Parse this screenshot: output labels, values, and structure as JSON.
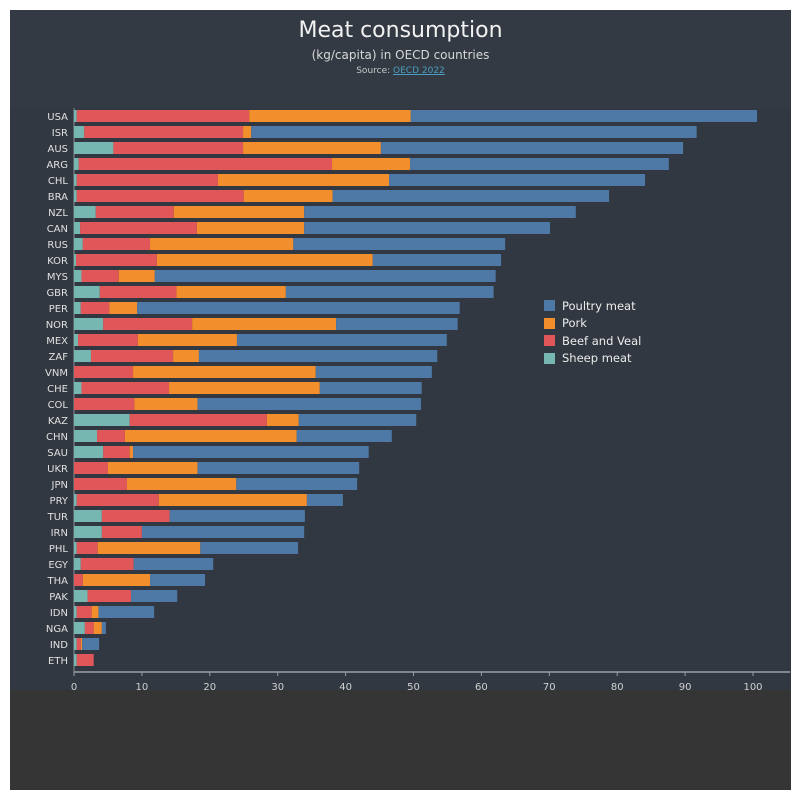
{
  "header": {
    "title": "Meat consumption",
    "subtitle": "(kg/capita) in OECD countries",
    "source_prefix": "Source: ",
    "source_link": "OECD 2022"
  },
  "legend": [
    {
      "name": "Poultry meat",
      "color": "#4e79a7"
    },
    {
      "name": "Pork",
      "color": "#f28e2b"
    },
    {
      "name": "Beef and Veal",
      "color": "#e15759"
    },
    {
      "name": "Sheep meat",
      "color": "#76b7b2"
    }
  ],
  "chart_data": {
    "type": "bar",
    "orientation": "horizontal",
    "stacked": true,
    "title": "Meat consumption",
    "subtitle": "(kg/capita) in OECD countries",
    "xlabel": "",
    "ylabel": "",
    "xlim": [
      0,
      105
    ],
    "xticks": [
      0,
      10,
      20,
      30,
      40,
      50,
      60,
      70,
      80,
      90,
      100
    ],
    "grid": false,
    "legend_position": "right",
    "stack_order": [
      "Sheep meat",
      "Beef and Veal",
      "Pork",
      "Poultry meat"
    ],
    "categories": [
      "USA",
      "ISR",
      "AUS",
      "ARG",
      "CHL",
      "BRA",
      "NZL",
      "CAN",
      "RUS",
      "KOR",
      "MYS",
      "GBR",
      "PER",
      "NOR",
      "MEX",
      "ZAF",
      "VNM",
      "CHE",
      "COL",
      "KAZ",
      "CHN",
      "SAU",
      "UKR",
      "JPN",
      "PRY",
      "TUR",
      "IRN",
      "PHL",
      "EGY",
      "THA",
      "PAK",
      "IDN",
      "NGA",
      "IND",
      "ETH"
    ],
    "series": [
      {
        "name": "Sheep meat",
        "color": "#76b7b2",
        "values": [
          0.4,
          1.5,
          5.8,
          0.7,
          0.4,
          0.4,
          3.2,
          0.9,
          1.3,
          0.3,
          1.1,
          3.8,
          1.0,
          4.3,
          0.6,
          2.5,
          0.0,
          1.1,
          0.0,
          8.2,
          3.4,
          4.3,
          0.0,
          0.0,
          0.4,
          4.1,
          4.1,
          0.4,
          1.0,
          0.0,
          2.0,
          0.4,
          1.6,
          0.4,
          0.4
        ]
      },
      {
        "name": "Beef and Veal",
        "color": "#e15759",
        "values": [
          25.4,
          23.4,
          19.1,
          37.3,
          20.8,
          24.6,
          11.5,
          17.2,
          9.9,
          11.9,
          5.5,
          11.3,
          4.2,
          13.1,
          8.8,
          12.1,
          8.7,
          12.9,
          8.9,
          20.2,
          4.1,
          3.9,
          5.0,
          7.8,
          12.1,
          10.0,
          5.9,
          3.1,
          7.8,
          1.3,
          6.4,
          2.2,
          1.3,
          0.6,
          2.5
        ]
      },
      {
        "name": "Pork",
        "color": "#f28e2b",
        "values": [
          23.8,
          1.2,
          20.3,
          11.5,
          25.2,
          13.1,
          19.2,
          15.8,
          21.1,
          31.8,
          5.3,
          16.1,
          4.1,
          21.2,
          14.6,
          3.8,
          26.9,
          22.2,
          9.3,
          4.7,
          25.3,
          0.5,
          13.2,
          16.1,
          21.8,
          0.0,
          0.0,
          15.1,
          0.0,
          9.9,
          0.0,
          1.0,
          1.2,
          0.2,
          0.0
        ]
      },
      {
        "name": "Poultry meat",
        "color": "#4e79a7",
        "values": [
          51.0,
          65.6,
          44.5,
          38.1,
          37.7,
          40.7,
          40.0,
          36.2,
          31.2,
          18.9,
          50.2,
          30.6,
          47.5,
          17.9,
          30.9,
          35.1,
          17.1,
          15.0,
          32.9,
          17.3,
          14.0,
          34.7,
          23.8,
          17.8,
          5.3,
          19.9,
          23.9,
          14.4,
          11.7,
          8.1,
          6.8,
          8.2,
          0.6,
          2.5,
          0.0
        ]
      }
    ],
    "totals": [
      100.6,
      91.7,
      89.7,
      87.6,
      84.1,
      78.8,
      73.9,
      70.1,
      63.5,
      62.9,
      62.1,
      61.8,
      56.8,
      56.5,
      54.9,
      53.5,
      52.7,
      51.2,
      51.1,
      50.4,
      46.8,
      43.4,
      42.0,
      41.7,
      39.6,
      34.0,
      33.9,
      33.0,
      20.5,
      19.3,
      15.2,
      11.8,
      4.7,
      3.7,
      2.9
    ]
  }
}
